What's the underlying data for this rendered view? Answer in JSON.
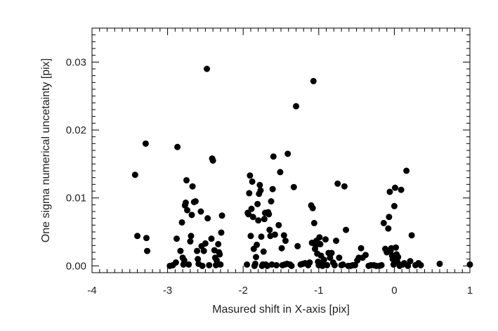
{
  "chart_data": {
    "type": "scatter",
    "title": "",
    "xlabel": "Masured shift in X-axis [pix]",
    "ylabel": "One sigma numerical uncetainty [pix]",
    "xlim": [
      -4,
      1
    ],
    "ylim": [
      -0.001,
      0.035
    ],
    "x_ticks": [
      {
        "value": -4,
        "label": "-4"
      },
      {
        "value": -3,
        "label": "-3"
      },
      {
        "value": -2,
        "label": "-2"
      },
      {
        "value": -1,
        "label": "-1"
      },
      {
        "value": 0,
        "label": "0"
      },
      {
        "value": 1,
        "label": "1"
      }
    ],
    "y_ticks": [
      {
        "value": 0.0,
        "label": "0.00"
      },
      {
        "value": 0.01,
        "label": "0.01"
      },
      {
        "value": 0.02,
        "label": "0.02"
      },
      {
        "value": 0.03,
        "label": "0.03"
      }
    ],
    "grid": false,
    "marker_color": "#000000",
    "points": [
      [
        -3.43,
        0.0134
      ],
      [
        -3.4,
        0.0044
      ],
      [
        -3.29,
        0.018
      ],
      [
        -3.28,
        0.0041
      ],
      [
        -3.27,
        0.0022
      ],
      [
        -2.97,
        0.0
      ],
      [
        -2.93,
        0.0001
      ],
      [
        -2.89,
        0.0005
      ],
      [
        -2.88,
        0.004
      ],
      [
        -2.87,
        0.0175
      ],
      [
        -2.83,
        0.0022
      ],
      [
        -2.81,
        0.0064
      ],
      [
        -2.8,
        0.0012
      ],
      [
        -2.79,
        0.0002
      ],
      [
        -2.78,
        0.0008
      ],
      [
        -2.77,
        0.0089
      ],
      [
        -2.76,
        0.0093
      ],
      [
        -2.75,
        0.0126
      ],
      [
        -2.74,
        0.0082
      ],
      [
        -2.72,
        0.0002
      ],
      [
        -2.7,
        0.0036
      ],
      [
        -2.69,
        0.0044
      ],
      [
        -2.68,
        0.0075
      ],
      [
        -2.67,
        0.0117
      ],
      [
        -2.65,
        0.0094
      ],
      [
        -2.63,
        0.0095
      ],
      [
        -2.61,
        0.0022
      ],
      [
        -2.6,
        0.001
      ],
      [
        -2.59,
        0.0003
      ],
      [
        -2.56,
        0.008
      ],
      [
        -2.55,
        0.0029
      ],
      [
        -2.54,
        0.0
      ],
      [
        -2.52,
        0.0022
      ],
      [
        -2.5,
        0.0033
      ],
      [
        -2.48,
        0.029
      ],
      [
        -2.47,
        0.007
      ],
      [
        -2.45,
        0.0001
      ],
      [
        -2.42,
        0.004
      ],
      [
        -2.41,
        0.0158
      ],
      [
        -2.4,
        0.0155
      ],
      [
        -2.38,
        0.0023
      ],
      [
        -2.37,
        0.0012
      ],
      [
        -2.36,
        0.0001
      ],
      [
        -2.35,
        0.0008
      ],
      [
        -2.33,
        0.0032
      ],
      [
        -2.32,
        0.002
      ],
      [
        -2.31,
        0.0017
      ],
      [
        -2.3,
        0.0002
      ],
      [
        -2.29,
        0.0049
      ],
      [
        -2.28,
        0.0074
      ],
      [
        -1.95,
        0.0002
      ],
      [
        -1.94,
        0.0078
      ],
      [
        -1.93,
        0.0076
      ],
      [
        -1.92,
        0.0107
      ],
      [
        -1.91,
        0.0133
      ],
      [
        -1.9,
        0.0044
      ],
      [
        -1.89,
        0.0084
      ],
      [
        -1.88,
        0.0124
      ],
      [
        -1.87,
        0.0072
      ],
      [
        -1.86,
        0.0025
      ],
      [
        -1.85,
        0.0
      ],
      [
        -1.84,
        0.0003
      ],
      [
        -1.83,
        0.0013
      ],
      [
        -1.82,
        0.0031
      ],
      [
        -1.81,
        0.0091
      ],
      [
        -1.8,
        0.0067
      ],
      [
        -1.79,
        0.0106
      ],
      [
        -1.78,
        0.0119
      ],
      [
        -1.77,
        0.0111
      ],
      [
        -1.76,
        0.0043
      ],
      [
        -1.75,
        0.0
      ],
      [
        -1.74,
        0.0002
      ],
      [
        -1.73,
        0.0021
      ],
      [
        -1.72,
        0.0069
      ],
      [
        -1.71,
        0.0078
      ],
      [
        -1.7,
        0.0002
      ],
      [
        -1.68,
        0.0
      ],
      [
        -1.67,
        0.0079
      ],
      [
        -1.66,
        0.0076
      ],
      [
        -1.65,
        0.0053
      ],
      [
        -1.64,
        0.0044
      ],
      [
        -1.63,
        0.0095
      ],
      [
        -1.62,
        0.0002
      ],
      [
        -1.61,
        0.0113
      ],
      [
        -1.6,
        0.0161
      ],
      [
        -1.58,
        0.0046
      ],
      [
        -1.56,
        0.0001
      ],
      [
        -1.53,
        0.006
      ],
      [
        -1.51,
        0.0138
      ],
      [
        -1.49,
        0.0026
      ],
      [
        -1.48,
        0.0001
      ],
      [
        -1.46,
        0.0045
      ],
      [
        -1.45,
        0.0002
      ],
      [
        -1.44,
        0.0037
      ],
      [
        -1.42,
        0.0003
      ],
      [
        -1.41,
        0.0165
      ],
      [
        -1.38,
        0.0002
      ],
      [
        -1.36,
        0.0
      ],
      [
        -1.33,
        0.0116
      ],
      [
        -1.3,
        0.0235
      ],
      [
        -1.28,
        0.0029
      ],
      [
        -1.24,
        0.0002
      ],
      [
        -1.21,
        0.0003
      ],
      [
        -1.18,
        0.0004
      ],
      [
        -1.14,
        0.0001
      ],
      [
        -1.12,
        0.0005
      ],
      [
        -1.1,
        0.0089
      ],
      [
        -1.09,
        0.0034
      ],
      [
        -1.08,
        0.0085
      ],
      [
        -1.07,
        0.0272
      ],
      [
        -1.06,
        0.0063
      ],
      [
        -1.05,
        0.0025
      ],
      [
        -1.04,
        0.003
      ],
      [
        -1.03,
        0.0037
      ],
      [
        -1.02,
        0.0018
      ],
      [
        -1.01,
        0.0006
      ],
      [
        -1.0,
        0.0001
      ],
      [
        -0.99,
        0.0042
      ],
      [
        -0.98,
        0.0032
      ],
      [
        -0.97,
        0.0015
      ],
      [
        -0.96,
        0.0005
      ],
      [
        -0.95,
        0.0
      ],
      [
        -0.93,
        0.0009
      ],
      [
        -0.91,
        0.0039
      ],
      [
        -0.89,
        0.0001
      ],
      [
        -0.87,
        0.0019
      ],
      [
        -0.85,
        0.0012
      ],
      [
        -0.83,
        0.0019
      ],
      [
        -0.81,
        0.0005
      ],
      [
        -0.79,
        0.0001
      ],
      [
        -0.77,
        0.0037
      ],
      [
        -0.75,
        0.0121
      ],
      [
        -0.73,
        0.0012
      ],
      [
        -0.7,
        0.0001
      ],
      [
        -0.68,
        0.0002
      ],
      [
        -0.66,
        0.0117
      ],
      [
        -0.64,
        0.0053
      ],
      [
        -0.61,
        0.0
      ],
      [
        -0.58,
        0.0
      ],
      [
        -0.55,
        0.0001
      ],
      [
        -0.52,
        0.0001
      ],
      [
        -0.49,
        0.0008
      ],
      [
        -0.47,
        0.0012
      ],
      [
        -0.44,
        0.0026
      ],
      [
        -0.42,
        0.0012
      ],
      [
        -0.38,
        0.0016
      ],
      [
        -0.34,
        0.0
      ],
      [
        -0.31,
        0.0001
      ],
      [
        -0.27,
        0.0001
      ],
      [
        -0.24,
        0.0
      ],
      [
        -0.2,
        0.0
      ],
      [
        -0.17,
        0.0001
      ],
      [
        -0.14,
        0.0063
      ],
      [
        -0.12,
        0.0025
      ],
      [
        -0.1,
        0.002
      ],
      [
        -0.08,
        0.0055
      ],
      [
        -0.07,
        0.0072
      ],
      [
        -0.06,
        0.0109
      ],
      [
        -0.05,
        0.0022
      ],
      [
        -0.04,
        0.0026
      ],
      [
        -0.03,
        0.0015
      ],
      [
        -0.02,
        0.001
      ],
      [
        -0.01,
        0.0002
      ],
      [
        0.0,
        0.0088
      ],
      [
        0.01,
        0.0115
      ],
      [
        0.02,
        0.0027
      ],
      [
        0.03,
        0.0017
      ],
      [
        0.04,
        0.0006
      ],
      [
        0.05,
        0.0013
      ],
      [
        0.07,
        0.0
      ],
      [
        0.09,
        0.0112
      ],
      [
        0.11,
        0.0002
      ],
      [
        0.13,
        0.0004
      ],
      [
        0.16,
        0.014
      ],
      [
        0.18,
        0.0
      ],
      [
        0.21,
        0.0007
      ],
      [
        0.23,
        0.0045
      ],
      [
        0.28,
        0.0001
      ],
      [
        0.32,
        0.0004
      ],
      [
        0.35,
        0.0001
      ],
      [
        0.6,
        0.0003
      ],
      [
        1.0,
        0.0002
      ]
    ]
  }
}
